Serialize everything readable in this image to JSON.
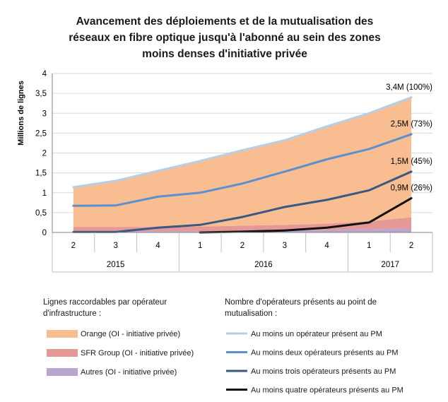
{
  "chart_data": {
    "type": "area",
    "title_lines": [
      "Avancement des déploiements et de la mutualisation des",
      "réseaux en fibre optique jusqu'à l'abonné au sein des zones",
      "moins denses d'initiative privée"
    ],
    "ylabel": "Millions de lignes",
    "ylim": [
      0,
      4
    ],
    "yticks": [
      0,
      0.5,
      1,
      1.5,
      2,
      2.5,
      3,
      3.5,
      4
    ],
    "ytick_labels": [
      "0",
      "0,5",
      "1",
      "1,5",
      "2",
      "2,5",
      "3",
      "3,5",
      "4"
    ],
    "quarters": [
      "2",
      "3",
      "4",
      "1",
      "2",
      "3",
      "4",
      "1",
      "2"
    ],
    "years": [
      {
        "label": "2015",
        "start": 0,
        "count": 3
      },
      {
        "label": "2016",
        "start": 3,
        "count": 4
      },
      {
        "label": "2017",
        "start": 7,
        "count": 2
      }
    ],
    "grid": true,
    "areas_title": "Lignes raccordables par opérateur d'infrastructure :",
    "areas_title_lines": [
      "Lignes raccordables par opérateur",
      "d'infrastructure :"
    ],
    "areas": [
      {
        "name": "Autres (OI - initiative privée)",
        "color": "#b9a6d0",
        "values": [
          0.03,
          0.03,
          0.03,
          0.03,
          0.04,
          0.05,
          0.06,
          0.08,
          0.1
        ]
      },
      {
        "name": "SFR Group (OI - initiative privée)",
        "color": "#e69896",
        "values": [
          0.11,
          0.11,
          0.11,
          0.12,
          0.13,
          0.14,
          0.16,
          0.2,
          0.28
        ]
      },
      {
        "name": "Orange (OI - initiative privée)",
        "color": "#f8bd90",
        "values": [
          1.0,
          1.16,
          1.41,
          1.65,
          1.9,
          2.13,
          2.45,
          2.72,
          3.02
        ]
      }
    ],
    "lines_title": "Nombre d'opérateurs présents au point de mutualisation :",
    "lines_title_lines": [
      "Nombre d'opérateurs présents au point de",
      "mutualisation :"
    ],
    "lines": [
      {
        "name": "Au moins un opérateur présent au PM",
        "color": "#b7cfe6",
        "width": 3,
        "values": [
          1.14,
          1.3,
          1.55,
          1.8,
          2.07,
          2.32,
          2.67,
          3.0,
          3.4
        ]
      },
      {
        "name": "Au moins deux opérateurs présents au PM",
        "color": "#5b8fd0",
        "width": 3,
        "values": [
          0.67,
          0.68,
          0.9,
          1.0,
          1.23,
          1.53,
          1.84,
          2.1,
          2.47
        ]
      },
      {
        "name": "Au moins trois opérateurs présents au PM",
        "color": "#3b5784",
        "width": 3,
        "values": [
          0.01,
          0.01,
          0.12,
          0.19,
          0.39,
          0.64,
          0.82,
          1.06,
          1.53
        ]
      },
      {
        "name": "Au moins quatre opérateurs présents au PM",
        "color": "#111111",
        "width": 3,
        "values": [
          null,
          null,
          null,
          0.0,
          0.02,
          0.05,
          0.12,
          0.25,
          0.86
        ]
      }
    ],
    "annotations": [
      {
        "text": "3,4M (100%)",
        "value": 3.4
      },
      {
        "text": "2,5M (73%)",
        "value": 2.47
      },
      {
        "text": "1,5M (45%)",
        "value": 1.53
      },
      {
        "text": "0,9M (26%)",
        "value": 0.86
      }
    ]
  }
}
